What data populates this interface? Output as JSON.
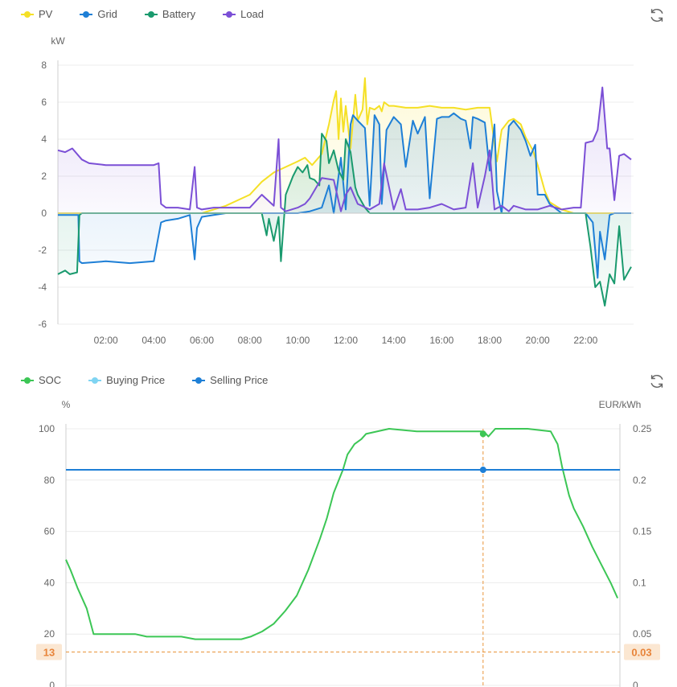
{
  "chart1": {
    "legend": [
      {
        "name": "PV",
        "color": "#f5e026"
      },
      {
        "name": "Grid",
        "color": "#1e7fd6"
      },
      {
        "name": "Battery",
        "color": "#1a9a6e"
      },
      {
        "name": "Load",
        "color": "#7b4fd6"
      }
    ],
    "refresh_icon": "refresh-icon",
    "chart_data": {
      "type": "line",
      "ylabel": "kW",
      "ylim": [
        -6,
        8
      ],
      "yticks": [
        "8",
        "6",
        "4",
        "2",
        "0",
        "-2",
        "-4",
        "-6"
      ],
      "xlim": [
        0,
        24
      ],
      "xticks": [
        "02:00",
        "04:00",
        "06:00",
        "08:00",
        "10:00",
        "12:00",
        "14:00",
        "16:00",
        "18:00",
        "20:00",
        "22:00"
      ],
      "grid": true,
      "legend_position": "top-left",
      "series": [
        {
          "name": "PV",
          "color": "#f5e026",
          "x": [
            0,
            0.5,
            1,
            2,
            4,
            5.5,
            6,
            6.5,
            7,
            7.5,
            8,
            8.5,
            9,
            9.5,
            10,
            10.3,
            10.6,
            11,
            11.3,
            11.5,
            11.6,
            11.7,
            11.8,
            11.9,
            12,
            12.2,
            12.4,
            12.5,
            12.6,
            12.7,
            12.8,
            12.9,
            13,
            13.2,
            13.4,
            13.5,
            13.6,
            13.8,
            14,
            14.5,
            15,
            15.5,
            16,
            16.5,
            17,
            17.5,
            18,
            18.3,
            18.5,
            18.8,
            19,
            19.3,
            19.5,
            19.8,
            20,
            20.3,
            20.5,
            21,
            21.5,
            22,
            23,
            23.9
          ],
          "values": [
            0,
            0,
            0,
            0,
            0,
            0,
            0,
            0.2,
            0.4,
            0.7,
            1,
            1.7,
            2.2,
            2.5,
            2.8,
            3,
            2.6,
            3.2,
            4.8,
            6.1,
            6.6,
            4,
            6.2,
            4.4,
            5.8,
            3.5,
            6.4,
            5,
            5.3,
            5.6,
            7.3,
            4.8,
            5.7,
            5.6,
            5.8,
            5.5,
            6,
            5.8,
            5.8,
            5.7,
            5.7,
            5.8,
            5.7,
            5.7,
            5.6,
            5.7,
            5.7,
            2.8,
            4.5,
            5,
            5.1,
            4.8,
            4.1,
            3.4,
            2.6,
            1.2,
            0.6,
            0.2,
            0,
            0,
            0,
            0
          ]
        },
        {
          "name": "Grid",
          "color": "#1e7fd6",
          "x": [
            0,
            0.5,
            0.85,
            0.9,
            1,
            2,
            3,
            4,
            4.3,
            4.5,
            5,
            5.5,
            5.7,
            5.8,
            6,
            6.5,
            7,
            8,
            9,
            10,
            10.5,
            11,
            11.3,
            11.5,
            11.8,
            12,
            12.2,
            12.3,
            12.5,
            12.8,
            13,
            13.2,
            13.4,
            13.5,
            13.7,
            14,
            14.3,
            14.5,
            14.8,
            15,
            15.3,
            15.5,
            15.8,
            16,
            16.3,
            16.5,
            16.8,
            17,
            17.2,
            17.3,
            17.5,
            17.8,
            18,
            18.2,
            18.3,
            18.5,
            18.8,
            19,
            19.3,
            19.5,
            19.7,
            19.9,
            20,
            20.3,
            20.5,
            21,
            21.5,
            22,
            22.3,
            22.5,
            22.6,
            22.8,
            23,
            23.2,
            23.5,
            23.9
          ],
          "values": [
            -0.1,
            -0.1,
            -0.1,
            -2.6,
            -2.7,
            -2.6,
            -2.7,
            -2.6,
            -0.5,
            -0.4,
            -0.3,
            -0.1,
            -2.5,
            -0.8,
            -0.2,
            -0.1,
            0,
            0,
            0,
            0,
            0.1,
            0.3,
            1.5,
            0,
            3,
            0.2,
            4.8,
            5.3,
            5,
            4.6,
            0.4,
            5.3,
            4.8,
            0.5,
            4.5,
            5.2,
            4.8,
            2.5,
            5,
            4.3,
            5.2,
            0.8,
            5.1,
            5.2,
            5.2,
            5.4,
            5.1,
            5,
            3.5,
            5.2,
            5.1,
            4.9,
            2.3,
            4.8,
            1.2,
            0,
            4.7,
            5,
            4.5,
            3.9,
            3.1,
            3.7,
            1,
            1,
            0.5,
            0,
            0,
            0,
            -0.5,
            -3.5,
            -1,
            -2.5,
            -0.1,
            0,
            0,
            0
          ]
        },
        {
          "name": "Battery",
          "color": "#1a9a6e",
          "x": [
            0,
            0.3,
            0.5,
            0.8,
            0.9,
            1,
            2,
            3,
            4,
            5,
            6,
            7,
            8,
            8.5,
            8.7,
            8.8,
            9,
            9.2,
            9.3,
            9.5,
            9.8,
            10,
            10.2,
            10.4,
            10.5,
            10.7,
            10.9,
            11,
            11.2,
            11.3,
            11.5,
            11.7,
            11.9,
            12,
            12.2,
            12.4,
            12.5,
            12.8,
            13,
            14,
            15,
            16,
            17,
            18,
            19,
            20,
            21,
            22,
            22.2,
            22.4,
            22.6,
            22.8,
            23,
            23.2,
            23.4,
            23.6,
            23.9
          ],
          "values": [
            -3.3,
            -3.1,
            -3.3,
            -3.2,
            -0.1,
            0,
            0,
            0,
            0,
            0,
            0,
            0,
            0,
            0,
            -1.2,
            -0.3,
            -1.5,
            -0.2,
            -2.6,
            1,
            2,
            2.5,
            2.2,
            2.6,
            1.9,
            1.8,
            1.5,
            4.3,
            3.9,
            2.7,
            3.4,
            2.3,
            1.8,
            4,
            3.3,
            1.4,
            1,
            0.3,
            0,
            0,
            0,
            0,
            0,
            0,
            0,
            0,
            0,
            0,
            -1.8,
            -4,
            -3.7,
            -5,
            -3.3,
            -3.8,
            -0.7,
            -3.6,
            -2.9
          ]
        },
        {
          "name": "Load",
          "color": "#7b4fd6",
          "x": [
            0,
            0.3,
            0.6,
            1,
            1.3,
            2,
            3,
            4,
            4.2,
            4.3,
            4.5,
            5,
            5.5,
            5.7,
            5.8,
            6,
            6.5,
            7,
            8,
            8.5,
            9,
            9.2,
            9.3,
            9.5,
            10,
            10.3,
            10.5,
            11,
            11.5,
            11.8,
            12,
            12.2,
            12.5,
            13,
            13.4,
            13.6,
            14,
            14.3,
            14.5,
            15,
            15.5,
            16,
            16.5,
            17,
            17.3,
            17.5,
            17.8,
            18,
            18.2,
            18.5,
            18.8,
            19,
            19.5,
            20,
            20.5,
            21,
            21.5,
            21.8,
            22,
            22.3,
            22.5,
            22.7,
            22.9,
            23,
            23.2,
            23.4,
            23.6,
            23.9
          ],
          "values": [
            3.4,
            3.3,
            3.5,
            2.9,
            2.7,
            2.6,
            2.6,
            2.6,
            2.7,
            0.5,
            0.3,
            0.3,
            0.2,
            2.5,
            0.3,
            0.2,
            0.3,
            0.3,
            0.3,
            1,
            0.4,
            4,
            0.3,
            0.1,
            0.3,
            0.5,
            0.8,
            1.9,
            1.8,
            0.1,
            1,
            1.4,
            0.5,
            0.2,
            0.5,
            2.7,
            0.2,
            1.3,
            0.2,
            0.2,
            0.3,
            0.5,
            0.2,
            0.3,
            2.7,
            0.3,
            2,
            3.4,
            0.2,
            0.4,
            0.1,
            0.4,
            0.2,
            0.2,
            0.4,
            0.2,
            0.3,
            0.3,
            3.8,
            3.9,
            4.5,
            6.8,
            3.5,
            3.5,
            0.7,
            3.1,
            3.2,
            2.9
          ]
        }
      ]
    }
  },
  "chart2": {
    "legend": [
      {
        "name": "SOC",
        "color": "#3cc655"
      },
      {
        "name": "Buying Price",
        "color": "#7fd4f2"
      },
      {
        "name": "Selling Price",
        "color": "#1e7fd6"
      }
    ],
    "refresh_icon": "refresh-icon",
    "chart_data": {
      "type": "line",
      "ylabel": "%",
      "ylabel_right": "EUR/kWh",
      "ylim": [
        0,
        100
      ],
      "ylim_right": [
        0,
        0.25
      ],
      "yticks": [
        "100",
        "80",
        "60",
        "40",
        "20",
        "0"
      ],
      "yticks_right": [
        "0.25",
        "0.2",
        "0.15",
        "0.1",
        "0.05",
        "0"
      ],
      "xlim": [
        0,
        24
      ],
      "grid": true,
      "legend_position": "top-left",
      "series": [
        {
          "name": "SOC",
          "color": "#3cc655",
          "x": [
            0,
            0.2,
            0.5,
            0.9,
            1.2,
            3,
            3.5,
            5,
            5.6,
            6,
            7.6,
            8,
            8.5,
            9,
            9.5,
            10,
            10.5,
            11,
            11.3,
            11.6,
            12,
            12.2,
            12.5,
            12.8,
            13,
            14,
            15.2,
            16,
            17,
            18,
            18.1,
            18.3,
            18.6,
            19,
            20,
            21,
            21.3,
            21.5,
            21.8,
            22,
            22.4,
            22.8,
            23.2,
            23.6,
            23.9
          ],
          "values": [
            49,
            45,
            38,
            30,
            20,
            20,
            19,
            19,
            18,
            18,
            18,
            19,
            21,
            24,
            29,
            35,
            45,
            57,
            65,
            75,
            84,
            90,
            94,
            96,
            98,
            100,
            99,
            99,
            99,
            99,
            99,
            97,
            100,
            100,
            100,
            99,
            94,
            85,
            74,
            69,
            62,
            54,
            47,
            40,
            34
          ]
        },
        {
          "name": "Selling Price",
          "color": "#1e7fd6",
          "axis": "right",
          "x": [
            0,
            24
          ],
          "values": [
            0.21,
            0.21
          ]
        }
      ],
      "crosshair": {
        "x_fraction": 0.753,
        "y_left": "13",
        "y_right": "0.03",
        "point_soc": 98,
        "point_price": 0.21
      }
    }
  }
}
